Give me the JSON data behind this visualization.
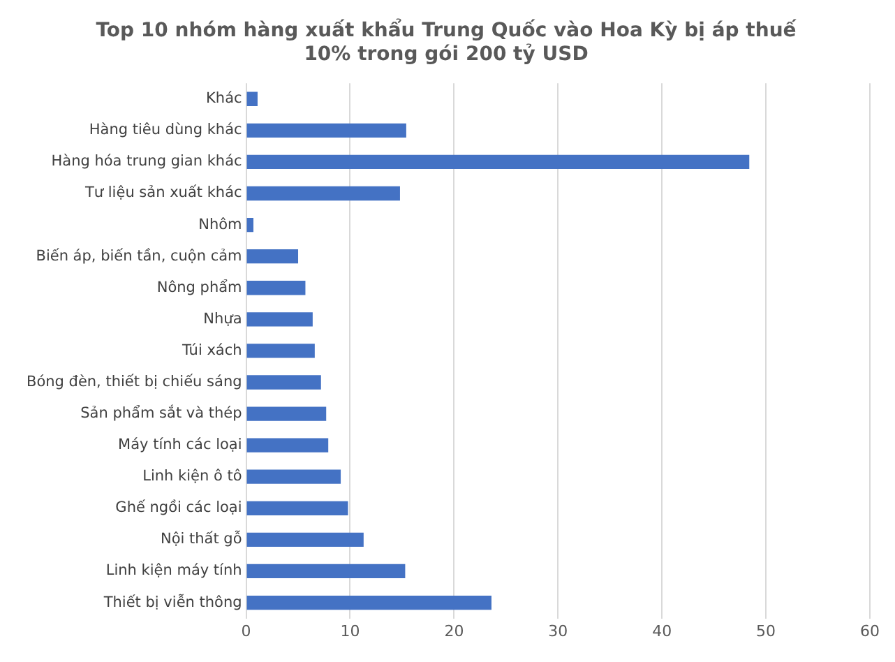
{
  "chart_data": {
    "type": "bar",
    "orientation": "horizontal",
    "title": "Top 10 nhóm hàng xuất khẩu Trung Quốc vào Hoa Kỳ bị áp thuế\n10% trong gói 200 tỷ USD",
    "categories": [
      "Khác",
      "Hàng tiêu dùng khác",
      "Hàng hóa trung gian khác",
      "Tư liệu sản xuất khác",
      "Nhôm",
      "Biến áp, biến tần, cuộn cảm",
      "Nông phẩm",
      "Nhựa",
      "Túi xách",
      "Bóng đèn, thiết bị chiếu sáng",
      "Sản phẩm sắt và thép",
      "Máy tính các loại",
      "Linh kiện ô tô",
      "Ghế ngồi các loại",
      "Nội thất gỗ",
      "Linh kiện máy tính",
      "Thiết bị viễn thông"
    ],
    "values": [
      1.1,
      15.4,
      48.4,
      14.8,
      0.7,
      5.0,
      5.7,
      6.4,
      6.6,
      7.2,
      7.7,
      7.9,
      9.1,
      9.8,
      11.3,
      15.3,
      23.6
    ],
    "color": "#4472c4",
    "xlim": [
      0,
      60
    ],
    "xticks": [
      0,
      10,
      20,
      30,
      40,
      50,
      60
    ],
    "grid": "x",
    "legend": false
  }
}
